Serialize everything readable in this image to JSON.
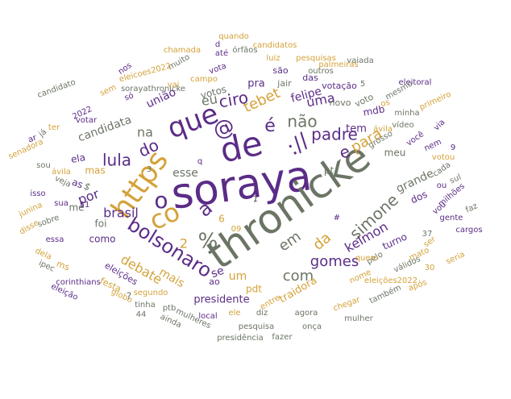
{
  "chart_data": {
    "type": "wordcloud",
    "title": "",
    "palette": {
      "purple": "#5b2c87",
      "gray": "#6b7565",
      "gold": "#d4a23a"
    },
    "words": [
      {
        "text": "soraya",
        "weight": 100,
        "color": "purple"
      },
      {
        "text": "thronicke",
        "weight": 95,
        "color": "gray"
      },
      {
        "text": "de",
        "weight": 80,
        "color": "purple"
      },
      {
        "text": "https",
        "weight": 70,
        "color": "gold"
      },
      {
        "text": "que",
        "weight": 68,
        "color": "purple"
      },
      {
        "text": "co",
        "weight": 66,
        "color": "gold"
      },
      {
        "text": "a",
        "weight": 55,
        "color": "purple"
      },
      {
        "text": "o",
        "weight": 55,
        "color": "purple"
      },
      {
        "text": "://",
        "weight": 55,
        "color": "purple"
      },
      {
        "text": "%",
        "weight": 50,
        "color": "gray"
      },
      {
        "text": "bolsonaro",
        "weight": 45,
        "color": "purple"
      },
      {
        "text": "@",
        "weight": 42,
        "color": "purple"
      },
      {
        "text": "é",
        "weight": 40,
        "color": "purple"
      },
      {
        "text": "não",
        "weight": 38,
        "color": "gray"
      },
      {
        "text": "e",
        "weight": 38,
        "color": "purple"
      },
      {
        "text": "padre",
        "weight": 36,
        "color": "purple"
      },
      {
        "text": "simone",
        "weight": 36,
        "color": "gray"
      },
      {
        "text": "lula",
        "weight": 34,
        "color": "purple"
      },
      {
        "text": "do",
        "weight": 34,
        "color": "purple"
      },
      {
        "text": "tebet",
        "weight": 33,
        "color": "gold"
      },
      {
        "text": "para",
        "weight": 32,
        "color": "gold"
      },
      {
        "text": "em",
        "weight": 32,
        "color": "gray"
      },
      {
        "text": "da",
        "weight": 32,
        "color": "gold"
      },
      {
        "text": "com",
        "weight": 30,
        "color": "gray"
      },
      {
        "text": "gomes",
        "weight": 30,
        "color": "purple"
      },
      {
        "text": "kelmon",
        "weight": 28,
        "color": "purple"
      },
      {
        "text": "ciro",
        "weight": 28,
        "color": "purple"
      },
      {
        "text": "uma",
        "weight": 26,
        "color": "purple"
      },
      {
        "text": "na",
        "weight": 26,
        "color": "gray"
      },
      {
        "text": "debate",
        "weight": 25,
        "color": "gold"
      },
      {
        "text": "brasil",
        "weight": 24,
        "color": "purple"
      },
      {
        "text": "por",
        "weight": 24,
        "color": "purple"
      },
      {
        "text": "eu",
        "weight": 24,
        "color": "gray"
      },
      {
        "text": "felipe",
        "weight": 22,
        "color": "purple"
      },
      {
        "text": "pra",
        "weight": 20,
        "color": "purple"
      },
      {
        "text": "mais",
        "weight": 20,
        "color": "gold"
      },
      {
        "text": "um",
        "weight": 22,
        "color": "gold"
      },
      {
        "text": "se",
        "weight": 22,
        "color": "purple"
      },
      {
        "text": "união",
        "weight": 20,
        "color": "purple"
      },
      {
        "text": "candidata",
        "weight": 20,
        "color": "gray"
      },
      {
        "text": "presidente",
        "weight": 18,
        "color": "purple"
      },
      {
        "text": "traidora",
        "weight": 18,
        "color": "gold"
      },
      {
        "text": "grande",
        "weight": 18,
        "color": "gray"
      },
      {
        "text": "tem",
        "weight": 16,
        "color": "purple"
      },
      {
        "text": "mdb",
        "weight": 16,
        "color": "purple"
      },
      {
        "text": "votos",
        "weight": 16,
        "color": "gray"
      },
      {
        "text": "meu",
        "weight": 16,
        "color": "gray"
      },
      {
        "text": "turno",
        "weight": 16,
        "color": "purple"
      },
      {
        "text": "dos",
        "weight": 16,
        "color": "purple"
      },
      {
        "text": "me",
        "weight": 16,
        "color": "gray"
      },
      {
        "text": "como",
        "weight": 14,
        "color": "purple"
      },
      {
        "text": "foi",
        "weight": 14,
        "color": "gray"
      },
      {
        "text": "mas",
        "weight": 14,
        "color": "gold"
      },
      {
        "text": "as",
        "weight": 14,
        "color": "purple"
      },
      {
        "text": "ela",
        "weight": 14,
        "color": "purple"
      },
      {
        "text": "pdt",
        "weight": 14,
        "color": "gold"
      },
      {
        "text": "ao",
        "weight": 16,
        "color": "purple"
      },
      {
        "text": "jair",
        "weight": 14,
        "color": "gray"
      },
      {
        "text": "das",
        "weight": 14,
        "color": "purple"
      },
      {
        "text": "são",
        "weight": 13,
        "color": "purple"
      },
      {
        "text": "votação",
        "weight": 13,
        "color": "purple"
      },
      {
        "text": "novo",
        "weight": 13,
        "color": "gray"
      },
      {
        "text": "voto",
        "weight": 13,
        "color": "gray"
      },
      {
        "text": "ms",
        "weight": 13,
        "color": "gold"
      },
      {
        "text": "eleições",
        "weight": 13,
        "color": "purple"
      },
      {
        "text": "festa",
        "weight": 14,
        "color": "gold"
      },
      {
        "text": "globo",
        "weight": 13,
        "color": "gold"
      },
      {
        "text": "segundo",
        "weight": 12,
        "color": "gold"
      },
      {
        "text": "tinha",
        "weight": 12,
        "color": "gray"
      },
      {
        "text": "ptb",
        "weight": 12,
        "color": "gray"
      },
      {
        "text": "local",
        "weight": 12,
        "color": "purple"
      },
      {
        "text": "ele",
        "weight": 12,
        "color": "gold"
      },
      {
        "text": "diz",
        "weight": 12,
        "color": "gray"
      },
      {
        "text": "agora",
        "weight": 12,
        "color": "gray"
      },
      {
        "text": "pesquisa",
        "weight": 12,
        "color": "gray"
      },
      {
        "text": "presidência",
        "weight": 12,
        "color": "gray"
      },
      {
        "text": "fazer",
        "weight": 11,
        "color": "gray"
      },
      {
        "text": "onça",
        "weight": 11,
        "color": "gray"
      },
      {
        "text": "chegar",
        "weight": 12,
        "color": "gold"
      },
      {
        "text": "mulher",
        "weight": 12,
        "color": "gray"
      },
      {
        "text": "também",
        "weight": 11,
        "color": "gray"
      },
      {
        "text": "após",
        "weight": 12,
        "color": "gold"
      },
      {
        "text": "eleições2022",
        "weight": 12,
        "color": "gold"
      },
      {
        "text": "pelo",
        "weight": 12,
        "color": "gray"
      },
      {
        "text": "nome",
        "weight": 12,
        "color": "gold"
      },
      {
        "text": "quem",
        "weight": 12,
        "color": "gold"
      },
      {
        "text": "válidos",
        "weight": 12,
        "color": "gray"
      },
      {
        "text": "mato",
        "weight": 11,
        "color": "gold"
      },
      {
        "text": "ser",
        "weight": 11,
        "color": "gold"
      },
      {
        "text": "seria",
        "weight": 11,
        "color": "gold"
      },
      {
        "text": "cargos",
        "weight": 11,
        "color": "purple"
      },
      {
        "text": "gente",
        "weight": 11,
        "color": "purple"
      },
      {
        "text": "faz",
        "weight": 11,
        "color": "gray"
      },
      {
        "text": "vou",
        "weight": 11,
        "color": "purple"
      },
      {
        "text": "milhões",
        "weight": 11,
        "color": "purple"
      },
      {
        "text": "ou",
        "weight": 11,
        "color": "purple"
      },
      {
        "text": "cada",
        "weight": 11,
        "color": "gray"
      },
      {
        "text": "sul",
        "weight": 11,
        "color": "gray"
      },
      {
        "text": "votou",
        "weight": 11,
        "color": "gold"
      },
      {
        "text": "nem",
        "weight": 11,
        "color": "purple"
      },
      {
        "text": "você",
        "weight": 12,
        "color": "purple"
      },
      {
        "text": "vídeo",
        "weight": 11,
        "color": "gray"
      },
      {
        "text": "minha",
        "weight": 11,
        "color": "gray"
      },
      {
        "text": "grosso",
        "weight": 11,
        "color": "gray"
      },
      {
        "text": "ávila",
        "weight": 12,
        "color": "gold"
      },
      {
        "text": "os",
        "weight": 12,
        "color": "gold"
      },
      {
        "text": "via",
        "weight": 11,
        "color": "purple"
      },
      {
        "text": "primeiro",
        "weight": 12,
        "color": "gold"
      },
      {
        "text": "eleitoral",
        "weight": 12,
        "color": "purple"
      },
      {
        "text": "mesmo",
        "weight": 12,
        "color": "gray"
      },
      {
        "text": "palmeiras",
        "weight": 12,
        "color": "gold"
      },
      {
        "text": "vaiada",
        "weight": 11,
        "color": "gray"
      },
      {
        "text": "pesquisas",
        "weight": 12,
        "color": "gold"
      },
      {
        "text": "outros",
        "weight": 11,
        "color": "gray"
      },
      {
        "text": "luiz",
        "weight": 11,
        "color": "gold"
      },
      {
        "text": "candidatos",
        "weight": 11,
        "color": "gold"
      },
      {
        "text": "quando",
        "weight": 11,
        "color": "gold"
      },
      {
        "text": "órfãos",
        "weight": 11,
        "color": "gray"
      },
      {
        "text": "até",
        "weight": 11,
        "color": "purple"
      },
      {
        "text": "vota",
        "weight": 11,
        "color": "purple"
      },
      {
        "text": "campo",
        "weight": 11,
        "color": "gold"
      },
      {
        "text": "muito",
        "weight": 11,
        "color": "gray"
      },
      {
        "text": "chamada",
        "weight": 12,
        "color": "gold"
      },
      {
        "text": "nos",
        "weight": 11,
        "color": "purple"
      },
      {
        "text": "eleicoes2022",
        "weight": 12,
        "color": "gold"
      },
      {
        "text": "sem",
        "weight": 11,
        "color": "gold"
      },
      {
        "text": "candidato",
        "weight": 11,
        "color": "gray"
      },
      {
        "text": "sorayathronicke",
        "weight": 11,
        "color": "gray"
      },
      {
        "text": "vai",
        "weight": 11,
        "color": "gold"
      },
      {
        "text": "só",
        "weight": 11,
        "color": "purple"
      },
      {
        "text": "2022",
        "weight": 11,
        "color": "purple"
      },
      {
        "text": "votar",
        "weight": 11,
        "color": "purple"
      },
      {
        "text": "já",
        "weight": 11,
        "color": "gray"
      },
      {
        "text": "senadora",
        "weight": 11,
        "color": "gold"
      },
      {
        "text": "ter",
        "weight": 11,
        "color": "gold"
      },
      {
        "text": "ar",
        "weight": 11,
        "color": "purple"
      },
      {
        "text": "sou",
        "weight": 11,
        "color": "gray"
      },
      {
        "text": "ávila",
        "weight": 11,
        "color": "gold"
      },
      {
        "text": "isso",
        "weight": 11,
        "color": "purple"
      },
      {
        "text": "veja",
        "weight": 11,
        "color": "gray"
      },
      {
        "text": "sua",
        "weight": 11,
        "color": "purple"
      },
      {
        "text": "junina",
        "weight": 11,
        "color": "gold"
      },
      {
        "text": "sobre",
        "weight": 11,
        "color": "gray"
      },
      {
        "text": "disse",
        "weight": 11,
        "color": "gold"
      },
      {
        "text": "essa",
        "weight": 11,
        "color": "purple"
      },
      {
        "text": "dela",
        "weight": 11,
        "color": "gold"
      },
      {
        "text": "ipec",
        "weight": 11,
        "color": "gray"
      },
      {
        "text": "corinthians",
        "weight": 11,
        "color": "purple"
      },
      {
        "text": "eleição",
        "weight": 11,
        "color": "purple"
      },
      {
        "text": "ainda",
        "weight": 11,
        "color": "gray"
      },
      {
        "text": "mulheres",
        "weight": 11,
        "color": "gray"
      },
      {
        "text": "entre",
        "weight": 11,
        "color": "gold"
      },
      {
        "text": "esse",
        "weight": 11,
        "color": "gray"
      },
      {
        "text": "pt",
        "weight": 11,
        "color": "gray"
      },
      {
        "text": "d",
        "weight": 14,
        "color": "purple"
      },
      {
        "text": "5",
        "weight": 12,
        "color": "gray"
      },
      {
        "text": "9",
        "weight": 11,
        "color": "purple"
      },
      {
        "text": "30",
        "weight": 11,
        "color": "gold"
      },
      {
        "text": "37",
        "weight": 11,
        "color": "gray"
      },
      {
        "text": "44",
        "weight": 11,
        "color": "gray"
      },
      {
        "text": "09",
        "weight": 11,
        "color": "gold"
      },
      {
        "text": "51",
        "weight": 11,
        "color": "purple"
      },
      {
        "text": "3",
        "weight": 11,
        "color": "gray"
      },
      {
        "text": "6",
        "weight": 11,
        "color": "gold"
      },
      {
        "text": "2",
        "weight": 11,
        "color": "gold"
      },
      {
        "text": "?",
        "weight": 12,
        "color": "gray"
      },
      {
        "text": "#",
        "weight": 16,
        "color": "purple"
      },
      {
        "text": "$",
        "weight": 12,
        "color": "gray"
      },
      {
        "text": "q",
        "weight": 11,
        "color": "purple"
      },
      {
        "text": "/",
        "weight": 12,
        "color": "purple"
      },
      {
        "text": "1",
        "weight": 11,
        "color": "gray"
      }
    ]
  }
}
